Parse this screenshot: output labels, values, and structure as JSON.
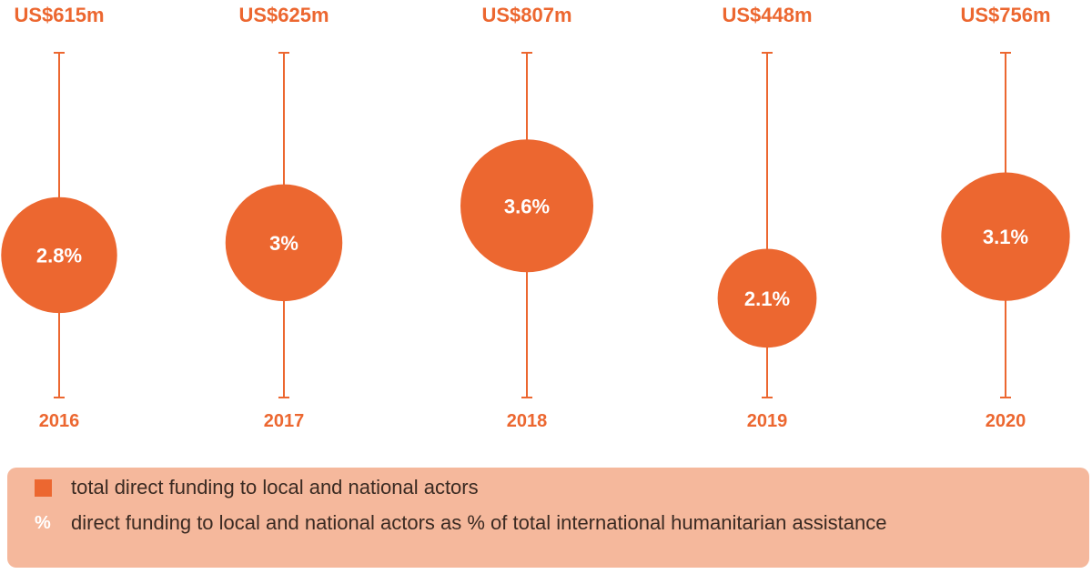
{
  "chart_data": {
    "type": "scatter",
    "categories": [
      "2016",
      "2017",
      "2018",
      "2019",
      "2020"
    ],
    "series": [
      {
        "name": "total direct funding to local and national actors",
        "values": [
          615,
          625,
          807,
          448,
          756
        ],
        "labels": [
          "US$615m",
          "US$625m",
          "US$807m",
          "US$448m",
          "US$756m"
        ]
      },
      {
        "name": "direct funding to local and national actors as % of total international humanitarian assistance",
        "values": [
          2.8,
          3.0,
          3.6,
          2.1,
          3.1
        ],
        "labels": [
          "2.8%",
          "3%",
          "3.6%",
          "2.1%",
          "3.1%"
        ]
      }
    ],
    "y_range_percent": [
      1.5,
      4.2
    ],
    "colors": {
      "accent": "#ec6730",
      "legend_background": "#f5b89c",
      "circle_text": "#ffffff"
    },
    "legend": {
      "placement": "bottom",
      "items": [
        {
          "symbol": "square",
          "text": "total direct funding to local and national actors"
        },
        {
          "symbol": "%",
          "text": "direct funding to local and national actors as % of total international humanitarian assistance"
        }
      ]
    }
  }
}
